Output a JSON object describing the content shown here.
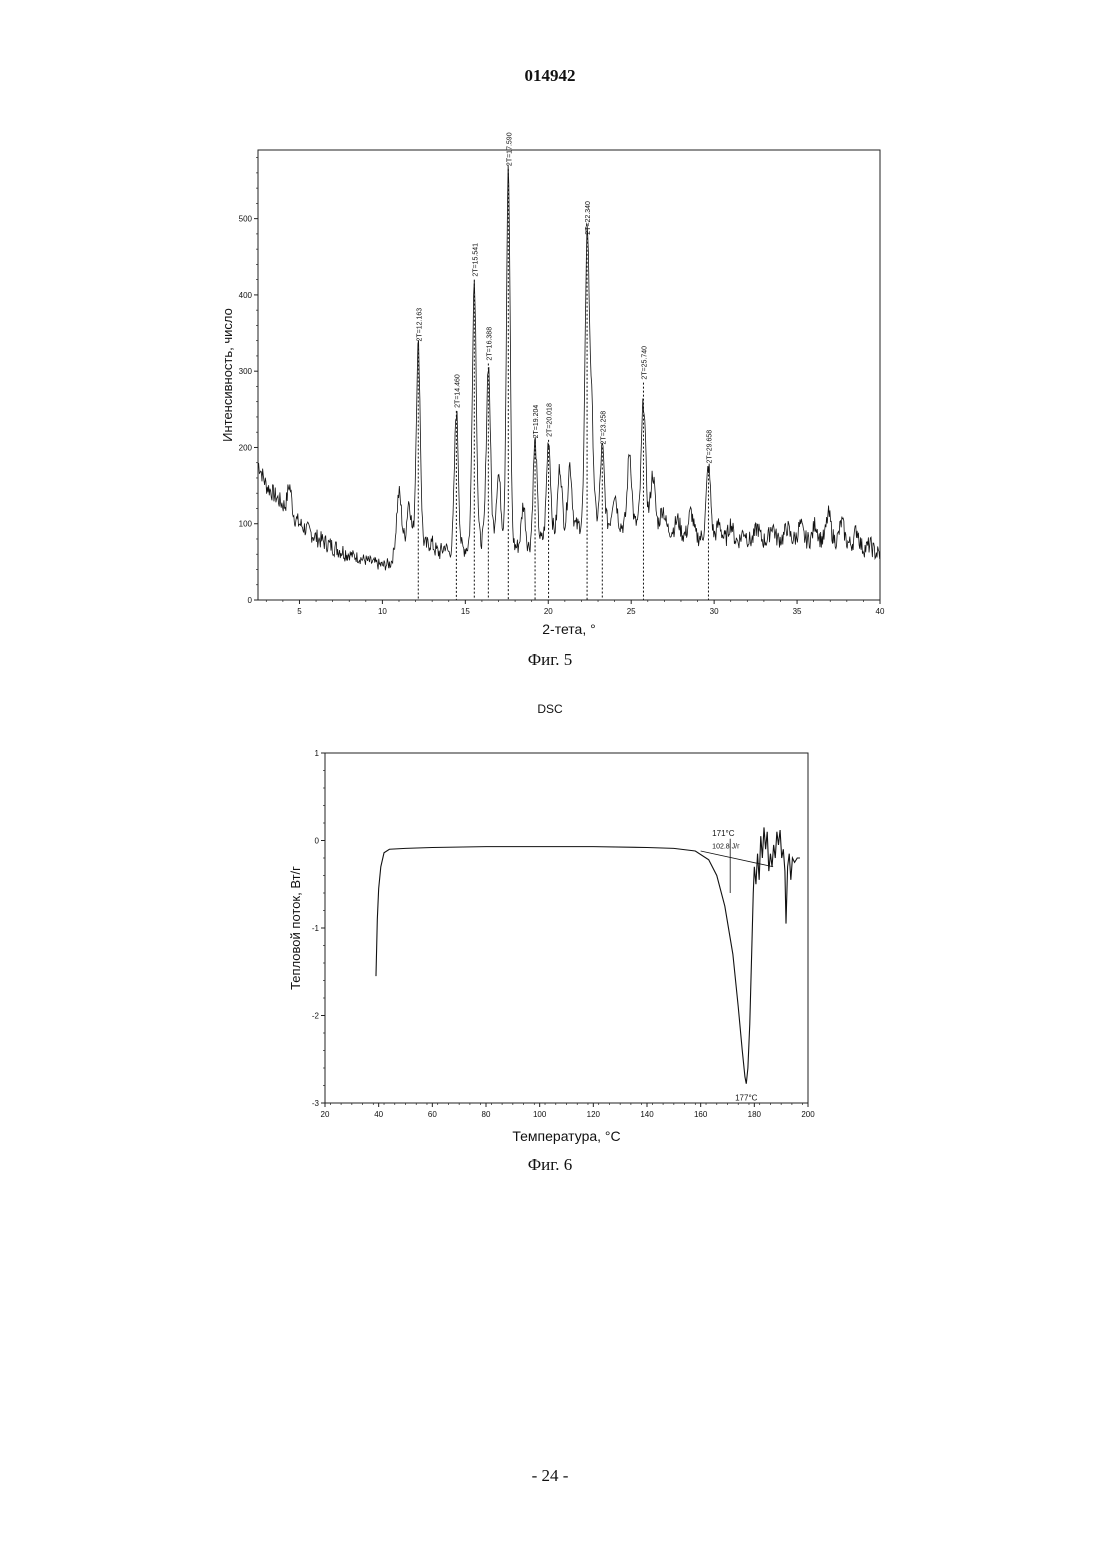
{
  "page": {
    "doc_number": "014942",
    "page_number": "- 24 -"
  },
  "chart_data": [
    {
      "type": "line",
      "caption": "Фиг. 5",
      "title": "",
      "xlabel": "2-тета, °",
      "ylabel": "Интенсивность, число",
      "xlim": [
        2.5,
        40
      ],
      "ylim": [
        0,
        590
      ],
      "xticks": [
        5,
        10,
        15,
        20,
        25,
        30,
        35,
        40
      ],
      "yticks": [
        0,
        100,
        200,
        300,
        400,
        500
      ],
      "grid": false,
      "baseline": [
        [
          2.5,
          180
        ],
        [
          3,
          150
        ],
        [
          4,
          125
        ],
        [
          5,
          100
        ],
        [
          6,
          82
        ],
        [
          7,
          70
        ],
        [
          8,
          60
        ],
        [
          9,
          52
        ],
        [
          10,
          45
        ],
        [
          10.5,
          48
        ],
        [
          11,
          70
        ],
        [
          12,
          80
        ],
        [
          13,
          65
        ],
        [
          14,
          58
        ],
        [
          15,
          68
        ],
        [
          16,
          78
        ],
        [
          17,
          88
        ],
        [
          18,
          70
        ],
        [
          19,
          68
        ],
        [
          20,
          85
        ],
        [
          21,
          95
        ],
        [
          22,
          98
        ],
        [
          23,
          105
        ],
        [
          24,
          95
        ],
        [
          25,
          100
        ],
        [
          26,
          100
        ],
        [
          27,
          95
        ],
        [
          28,
          85
        ],
        [
          29,
          82
        ],
        [
          30,
          82
        ],
        [
          31,
          78
        ],
        [
          32,
          78
        ],
        [
          33,
          78
        ],
        [
          34,
          80
        ],
        [
          35,
          80
        ],
        [
          36,
          78
        ],
        [
          37,
          80
        ],
        [
          38,
          75
        ],
        [
          39,
          68
        ],
        [
          40,
          60
        ]
      ],
      "peaks": [
        {
          "x": 4.4,
          "y": 150,
          "w": 0.12
        },
        {
          "x": 11.0,
          "y": 140,
          "w": 0.15
        },
        {
          "x": 11.6,
          "y": 130,
          "w": 0.12
        },
        {
          "x": 12.163,
          "y": 335,
          "w": 0.12
        },
        {
          "x": 12.95,
          "y": 75,
          "w": 0.15
        },
        {
          "x": 13.8,
          "y": 70,
          "w": 0.15
        },
        {
          "x": 14.46,
          "y": 248,
          "w": 0.12
        },
        {
          "x": 15.541,
          "y": 420,
          "w": 0.12
        },
        {
          "x": 16.388,
          "y": 310,
          "w": 0.12
        },
        {
          "x": 17.0,
          "y": 165,
          "w": 0.13
        },
        {
          "x": 17.59,
          "y": 565,
          "w": 0.11
        },
        {
          "x": 18.5,
          "y": 125,
          "w": 0.12
        },
        {
          "x": 19.204,
          "y": 208,
          "w": 0.12
        },
        {
          "x": 20.018,
          "y": 210,
          "w": 0.12
        },
        {
          "x": 20.7,
          "y": 175,
          "w": 0.12
        },
        {
          "x": 21.3,
          "y": 178,
          "w": 0.12
        },
        {
          "x": 22.34,
          "y": 475,
          "w": 0.12
        },
        {
          "x": 22.6,
          "y": 250,
          "w": 0.12
        },
        {
          "x": 23.258,
          "y": 200,
          "w": 0.12
        },
        {
          "x": 24.0,
          "y": 140,
          "w": 0.14
        },
        {
          "x": 24.9,
          "y": 195,
          "w": 0.12
        },
        {
          "x": 25.74,
          "y": 260,
          "w": 0.13
        },
        {
          "x": 26.3,
          "y": 165,
          "w": 0.13
        },
        {
          "x": 26.9,
          "y": 120,
          "w": 0.13
        },
        {
          "x": 27.8,
          "y": 105,
          "w": 0.14
        },
        {
          "x": 28.6,
          "y": 115,
          "w": 0.14
        },
        {
          "x": 29.658,
          "y": 175,
          "w": 0.13
        },
        {
          "x": 30.3,
          "y": 100,
          "w": 0.13
        },
        {
          "x": 31.0,
          "y": 100,
          "w": 0.13
        },
        {
          "x": 31.8,
          "y": 90,
          "w": 0.13
        },
        {
          "x": 32.6,
          "y": 95,
          "w": 0.13
        },
        {
          "x": 33.5,
          "y": 98,
          "w": 0.13
        },
        {
          "x": 34.4,
          "y": 95,
          "w": 0.13
        },
        {
          "x": 35.2,
          "y": 98,
          "w": 0.13
        },
        {
          "x": 36.1,
          "y": 100,
          "w": 0.13
        },
        {
          "x": 36.9,
          "y": 112,
          "w": 0.13
        },
        {
          "x": 37.7,
          "y": 102,
          "w": 0.13
        },
        {
          "x": 38.6,
          "y": 92,
          "w": 0.13
        },
        {
          "x": 39.4,
          "y": 72,
          "w": 0.13
        }
      ],
      "annotations": [
        {
          "x": 12.163,
          "y": 335,
          "label": "2T=12.163"
        },
        {
          "x": 14.46,
          "y": 248,
          "label": "2T=14.460"
        },
        {
          "x": 15.541,
          "y": 420,
          "label": "2T=15.541"
        },
        {
          "x": 16.388,
          "y": 310,
          "label": "2T=16.388"
        },
        {
          "x": 17.59,
          "y": 565,
          "label": "2T=17.590"
        },
        {
          "x": 19.204,
          "y": 208,
          "label": "2T=19.204"
        },
        {
          "x": 20.018,
          "y": 210,
          "label": "2T=20.018"
        },
        {
          "x": 22.34,
          "y": 475,
          "label": "2T=22.340"
        },
        {
          "x": 23.258,
          "y": 200,
          "label": "2T=23.258"
        },
        {
          "x": 25.74,
          "y": 285,
          "label": "2T=25.740"
        },
        {
          "x": 29.658,
          "y": 175,
          "label": "2T=29.658"
        }
      ]
    },
    {
      "type": "line",
      "caption": "Фиг. 6",
      "title": "DSC",
      "xlabel": "Температура, °C",
      "ylabel": "Тепловой поток, Вт/г",
      "xlim": [
        20,
        200
      ],
      "ylim": [
        -3,
        1
      ],
      "xticks": [
        20,
        40,
        60,
        80,
        100,
        120,
        140,
        160,
        180,
        200
      ],
      "yticks": [
        1,
        0,
        -1,
        -2,
        -3
      ],
      "grid": false,
      "series": [
        {
          "points": [
            [
              39,
              -1.55
            ],
            [
              39.5,
              -0.9
            ],
            [
              40,
              -0.55
            ],
            [
              40.8,
              -0.3
            ],
            [
              42,
              -0.14
            ],
            [
              44,
              -0.1
            ],
            [
              50,
              -0.09
            ],
            [
              60,
              -0.08
            ],
            [
              80,
              -0.07
            ],
            [
              100,
              -0.07
            ],
            [
              120,
              -0.07
            ],
            [
              140,
              -0.08
            ],
            [
              150,
              -0.09
            ],
            [
              158,
              -0.12
            ],
            [
              163,
              -0.22
            ],
            [
              166,
              -0.4
            ],
            [
              169,
              -0.75
            ],
            [
              172,
              -1.3
            ],
            [
              174,
              -1.9
            ],
            [
              175.5,
              -2.4
            ],
            [
              176.5,
              -2.7
            ],
            [
              177,
              -2.78
            ],
            [
              177.6,
              -2.6
            ],
            [
              178.3,
              -2.1
            ],
            [
              179,
              -1.3
            ],
            [
              179.6,
              -0.6
            ],
            [
              180,
              -0.3
            ],
            [
              180.6,
              -0.5
            ],
            [
              181.2,
              -0.15
            ],
            [
              181.8,
              -0.45
            ],
            [
              182.4,
              0.05
            ],
            [
              183,
              -0.2
            ],
            [
              183.6,
              0.15
            ],
            [
              184.2,
              -0.1
            ],
            [
              184.8,
              0.1
            ],
            [
              185.4,
              -0.35
            ],
            [
              186,
              -0.15
            ],
            [
              186.6,
              -0.3
            ],
            [
              187.2,
              -0.05
            ],
            [
              187.8,
              -0.2
            ],
            [
              188.4,
              0.1
            ],
            [
              189,
              -0.05
            ],
            [
              189.6,
              0.12
            ],
            [
              190.2,
              -0.2
            ],
            [
              190.8,
              -0.1
            ],
            [
              191.4,
              -0.35
            ],
            [
              191.8,
              -0.95
            ],
            [
              192.4,
              -0.3
            ],
            [
              193,
              -0.15
            ],
            [
              193.6,
              -0.45
            ],
            [
              194.2,
              -0.2
            ],
            [
              195,
              -0.25
            ],
            [
              196,
              -0.2
            ],
            [
              197,
              -0.2
            ]
          ]
        }
      ],
      "onset_line": [
        [
          160,
          -0.12
        ],
        [
          187,
          -0.3
        ]
      ],
      "onset_marker_x": 171,
      "annotations": [
        {
          "label": "171°C",
          "x": 171,
          "y": 0.05
        },
        {
          "label": "102.8 J/г",
          "x": 171,
          "y": -0.07
        },
        {
          "label": "177°C",
          "x": 177,
          "y": -2.95
        }
      ]
    }
  ]
}
